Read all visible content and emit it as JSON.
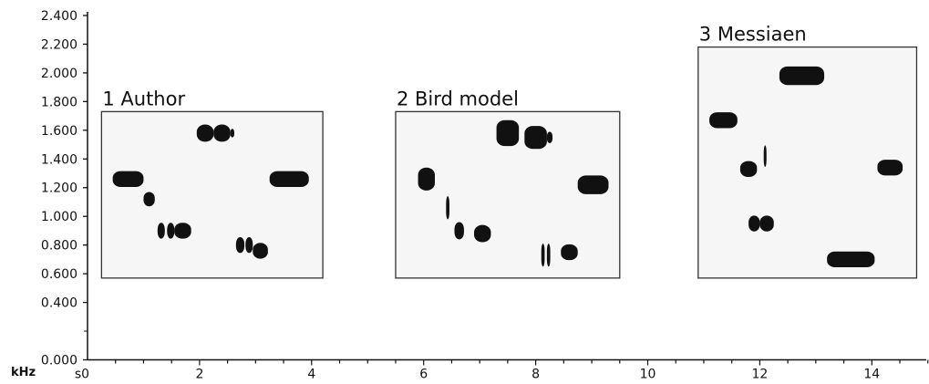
{
  "chart_data": {
    "type": "spectrogram",
    "x_axis": {
      "range": [
        0,
        15
      ],
      "ticks": [
        {
          "value": 0,
          "label": "s0"
        },
        {
          "value": 2,
          "label": "2"
        },
        {
          "value": 4,
          "label": "4"
        },
        {
          "value": 6,
          "label": "6"
        },
        {
          "value": 8,
          "label": "8"
        },
        {
          "value": 10,
          "label": "10"
        },
        {
          "value": 12,
          "label": "12"
        },
        {
          "value": 14,
          "label": "14"
        }
      ],
      "minor_step": 0.5
    },
    "y_axis": {
      "unit_label": "kHz",
      "range": [
        0,
        2.4
      ],
      "ticks": [
        {
          "value": 0.0,
          "label": "0.000"
        },
        {
          "value": 0.4,
          "label": "0.400"
        },
        {
          "value": 0.6,
          "label": "0.600"
        },
        {
          "value": 0.8,
          "label": "0.800"
        },
        {
          "value": 1.0,
          "label": "1.000"
        },
        {
          "value": 1.2,
          "label": "1.200"
        },
        {
          "value": 1.4,
          "label": "1.400"
        },
        {
          "value": 1.6,
          "label": "1.600"
        },
        {
          "value": 1.8,
          "label": "1.800"
        },
        {
          "value": 2.0,
          "label": "2.000"
        },
        {
          "value": 2.2,
          "label": "2.200"
        },
        {
          "value": 2.4,
          "label": "2.400"
        }
      ]
    },
    "panels": [
      {
        "title": "1 Author",
        "x_range": [
          0.25,
          4.2
        ],
        "y_range": [
          0.57,
          1.73
        ],
        "notes": [
          {
            "t0": 0.45,
            "t1": 1.0,
            "f": 1.26,
            "h": 0.11
          },
          {
            "t0": 1.0,
            "t1": 1.2,
            "f": 1.12,
            "h": 0.1
          },
          {
            "t0": 1.25,
            "t1": 1.38,
            "f": 0.9,
            "h": 0.11
          },
          {
            "t0": 1.42,
            "t1": 1.55,
            "f": 0.9,
            "h": 0.11
          },
          {
            "t0": 1.55,
            "t1": 1.85,
            "f": 0.9,
            "h": 0.11
          },
          {
            "t0": 1.95,
            "t1": 2.25,
            "f": 1.58,
            "h": 0.12
          },
          {
            "t0": 2.25,
            "t1": 2.55,
            "f": 1.58,
            "h": 0.12
          },
          {
            "t0": 2.55,
            "t1": 2.62,
            "f": 1.58,
            "h": 0.06
          },
          {
            "t0": 2.65,
            "t1": 2.8,
            "f": 0.8,
            "h": 0.11
          },
          {
            "t0": 2.82,
            "t1": 2.95,
            "f": 0.8,
            "h": 0.11
          },
          {
            "t0": 2.95,
            "t1": 3.22,
            "f": 0.76,
            "h": 0.11
          },
          {
            "t0": 3.25,
            "t1": 3.95,
            "f": 1.26,
            "h": 0.11
          }
        ]
      },
      {
        "title": "2 Bird model",
        "x_range": [
          5.5,
          9.5
        ],
        "y_range": [
          0.57,
          1.73
        ],
        "notes": [
          {
            "t0": 5.9,
            "t1": 6.2,
            "f": 1.26,
            "h": 0.16
          },
          {
            "t0": 6.4,
            "t1": 6.46,
            "f": 1.06,
            "h": 0.16
          },
          {
            "t0": 6.55,
            "t1": 6.72,
            "f": 0.9,
            "h": 0.12
          },
          {
            "t0": 6.9,
            "t1": 7.2,
            "f": 0.88,
            "h": 0.12
          },
          {
            "t0": 7.3,
            "t1": 7.7,
            "f": 1.58,
            "h": 0.18
          },
          {
            "t0": 7.8,
            "t1": 8.2,
            "f": 1.55,
            "h": 0.16
          },
          {
            "t0": 8.2,
            "t1": 8.3,
            "f": 1.55,
            "h": 0.08
          },
          {
            "t0": 8.1,
            "t1": 8.16,
            "f": 0.73,
            "h": 0.16
          },
          {
            "t0": 8.2,
            "t1": 8.26,
            "f": 0.73,
            "h": 0.16
          },
          {
            "t0": 8.45,
            "t1": 8.75,
            "f": 0.75,
            "h": 0.11
          },
          {
            "t0": 8.75,
            "t1": 9.3,
            "f": 1.22,
            "h": 0.13
          }
        ]
      },
      {
        "title": "3 Messiaen",
        "x_range": [
          10.9,
          14.8
        ],
        "y_range": [
          0.57,
          2.18
        ],
        "notes": [
          {
            "t0": 11.1,
            "t1": 11.6,
            "f": 1.67,
            "h": 0.11
          },
          {
            "t0": 11.65,
            "t1": 11.95,
            "f": 1.33,
            "h": 0.11
          },
          {
            "t0": 12.07,
            "t1": 12.12,
            "f": 1.42,
            "h": 0.15
          },
          {
            "t0": 11.8,
            "t1": 12.0,
            "f": 0.95,
            "h": 0.11
          },
          {
            "t0": 12.0,
            "t1": 12.25,
            "f": 0.95,
            "h": 0.11
          },
          {
            "t0": 12.35,
            "t1": 13.15,
            "f": 1.98,
            "h": 0.13
          },
          {
            "t0": 13.2,
            "t1": 14.05,
            "f": 0.7,
            "h": 0.11
          },
          {
            "t0": 14.1,
            "t1": 14.55,
            "f": 1.34,
            "h": 0.11
          }
        ]
      }
    ]
  }
}
